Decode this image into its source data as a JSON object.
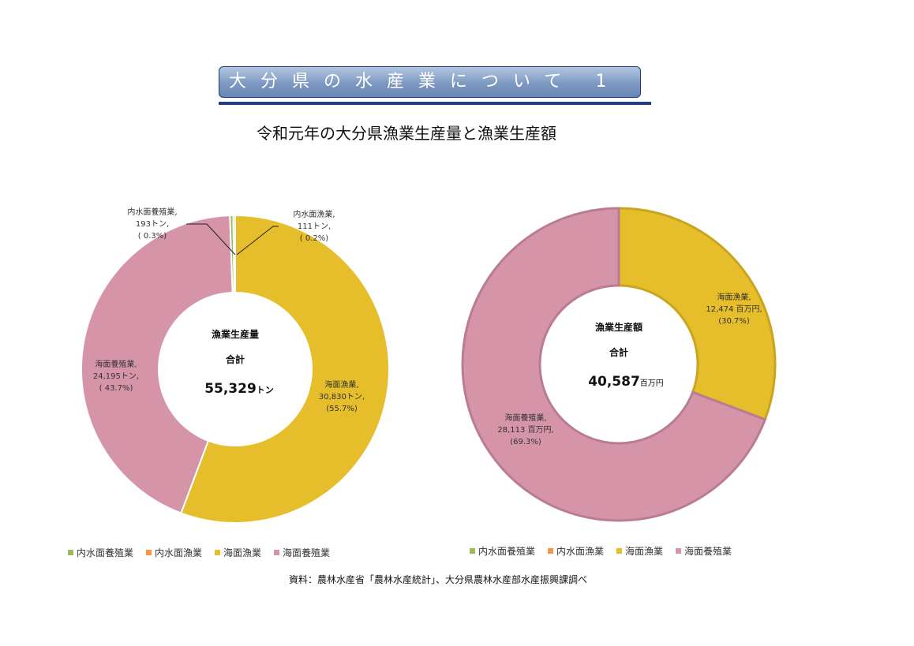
{
  "header": {
    "title": "大分県の水産業について 1",
    "subtitle": "令和元年の大分県漁業生産量と漁業生産額"
  },
  "colors": {
    "inland_culture": "#9bbb59",
    "inland_fishery": "#f79646",
    "marine_fishery": "#e6bd2a",
    "marine_culture": "#d594a8"
  },
  "chart_data": [
    {
      "type": "pie",
      "variant": "donut",
      "center": {
        "line1": "漁業生産量",
        "line2": "合計",
        "total": "55,329",
        "unit": "トン"
      },
      "slices": [
        {
          "name": "海面漁業",
          "value": 30830,
          "value_label": "30,830トン,",
          "pct": 55.7,
          "pct_label": "(55.7%)"
        },
        {
          "name": "海面養殖業",
          "value": 24195,
          "value_label": "24,195トン,",
          "pct": 43.7,
          "pct_label": "( 43.7%)"
        },
        {
          "name": "内水面養殖業",
          "value": 193,
          "value_label": "193トン,",
          "pct": 0.3,
          "pct_label": "( 0.3%)"
        },
        {
          "name": "内水面漁業",
          "value": 111,
          "value_label": "111トン,",
          "pct": 0.2,
          "pct_label": "( 0.2%)"
        }
      ],
      "legend": [
        "内水面養殖業",
        "内水面漁業",
        "海面漁業",
        "海面養殖業"
      ],
      "legend_position": "bottom"
    },
    {
      "type": "pie",
      "variant": "donut",
      "center": {
        "line1": "漁業生産額",
        "line2": "合計",
        "total": "40,587",
        "unit": "百万円"
      },
      "slices": [
        {
          "name": "海面漁業",
          "value": 12474,
          "value_label": "12,474 百万円,",
          "pct": 30.7,
          "pct_label": "(30.7%)"
        },
        {
          "name": "海面養殖業",
          "value": 28113,
          "value_label": "28,113 百万円,",
          "pct": 69.3,
          "pct_label": "(69.3%)"
        }
      ],
      "legend": [
        "内水面養殖業",
        "内水面漁業",
        "海面漁業",
        "海面養殖業"
      ],
      "legend_position": "bottom"
    }
  ],
  "source": "資料：農林水産省「農林水産統計」、大分県農林水産部水産振興課調べ"
}
